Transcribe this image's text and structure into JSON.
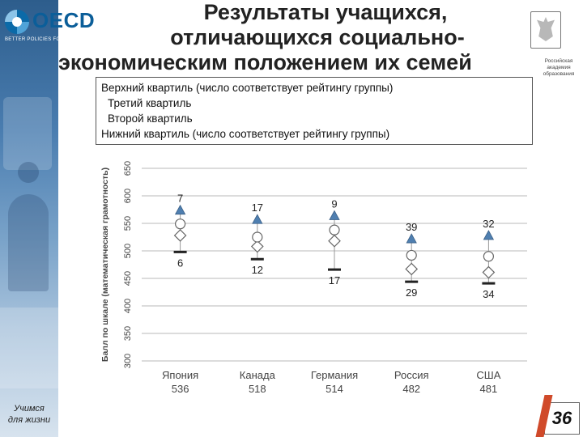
{
  "header": {
    "logo_text": "OECD",
    "logo_tagline": "BETTER POLICIES FOR BETTER LIVES",
    "title_line1": "Результаты учащихся,",
    "title_line2": "отличающихся социально-",
    "title_line3": "экономическим положением их семей",
    "emblem_caption": "Российская академия образования"
  },
  "legend": {
    "item1": "Верхний квартиль (число соответствует рейтингу группы)",
    "item2": "Третий квартиль",
    "item3": "Второй квартиль",
    "item4": "Нижний квартиль  (число соответствует рейтингу группы)"
  },
  "footer": {
    "left_line1": "Учимся",
    "left_line2": "для жизни",
    "page_number": "36"
  },
  "colors": {
    "triangle": "#4f7fb0",
    "grid": "#b8b8b8",
    "text": "#444444",
    "lower_bar": "#222222"
  },
  "chart_data": {
    "type": "scatter",
    "title": "",
    "xlabel": "",
    "ylabel": "Балл по шкале (математическая грамотность)",
    "ylim": [
      300,
      650
    ],
    "yticks": [
      300,
      350,
      400,
      450,
      500,
      550,
      600,
      650
    ],
    "grid": true,
    "categories": [
      {
        "country": "Япония",
        "score": "536"
      },
      {
        "country": "Канада",
        "score": "518"
      },
      {
        "country": "Германия",
        "score": "514"
      },
      {
        "country": "Россия",
        "score": "482"
      },
      {
        "country": "США",
        "score": "481"
      }
    ],
    "series": [
      {
        "name": "Верхний квартиль",
        "marker": "triangle",
        "values": [
          574,
          557,
          564,
          522,
          528
        ]
      },
      {
        "name": "Третий квартиль",
        "marker": "circle",
        "values": [
          549,
          525,
          538,
          492,
          490
        ]
      },
      {
        "name": "Второй квартиль",
        "marker": "diamond",
        "values": [
          528,
          508,
          518,
          467,
          461
        ]
      },
      {
        "name": "Нижний квартиль",
        "marker": "bar",
        "values": [
          498,
          485,
          466,
          444,
          441
        ]
      }
    ],
    "top_ranks": [
      "7",
      "17",
      "9",
      "39",
      "32"
    ],
    "bottom_ranks": [
      "6",
      "12",
      "17",
      "29",
      "34"
    ]
  }
}
